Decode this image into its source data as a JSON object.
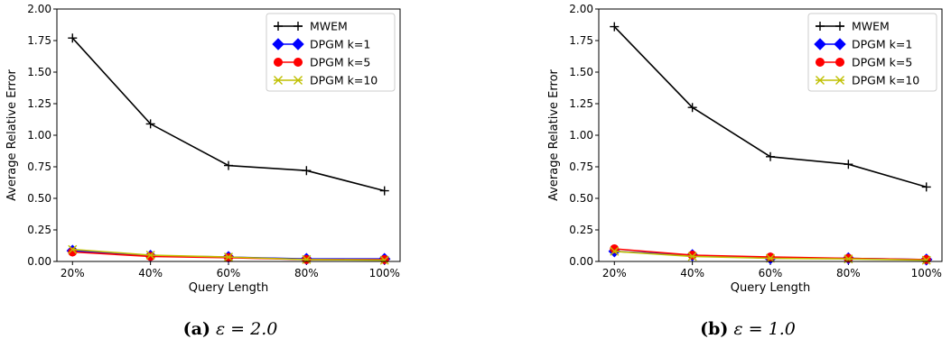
{
  "chart_data": [
    {
      "type": "line",
      "caption_label": "(a)",
      "caption_text": "ε = 2.0",
      "xlabel": "Query Length",
      "ylabel": "Average Relative Error",
      "categories": [
        "20%",
        "40%",
        "60%",
        "80%",
        "100%"
      ],
      "ylim": [
        0,
        2.0
      ],
      "yticks": [
        "0.00",
        "0.25",
        "0.50",
        "0.75",
        "1.00",
        "1.25",
        "1.50",
        "1.75",
        "2.00"
      ],
      "grid": false,
      "legend_position": "top-right",
      "series": [
        {
          "name": "MWEM",
          "color": "#000000",
          "marker": "plus",
          "values": [
            1.77,
            1.09,
            0.76,
            0.72,
            0.56
          ]
        },
        {
          "name": "DPGM k=1",
          "color": "#0000ff",
          "marker": "diamond",
          "values": [
            0.085,
            0.045,
            0.035,
            0.02,
            0.02
          ]
        },
        {
          "name": "DPGM k=5",
          "color": "#ff0000",
          "marker": "circle",
          "values": [
            0.075,
            0.04,
            0.03,
            0.015,
            0.015
          ]
        },
        {
          "name": "DPGM k=10",
          "color": "#bfbf00",
          "marker": "x",
          "values": [
            0.095,
            0.05,
            0.035,
            0.015,
            0.01
          ]
        }
      ]
    },
    {
      "type": "line",
      "caption_label": "(b)",
      "caption_text": "ε = 1.0",
      "xlabel": "Query Length",
      "ylabel": "Average Relative Error",
      "categories": [
        "20%",
        "40%",
        "60%",
        "80%",
        "100%"
      ],
      "ylim": [
        0,
        2.0
      ],
      "yticks": [
        "0.00",
        "0.25",
        "0.50",
        "0.75",
        "1.00",
        "1.25",
        "1.50",
        "1.75",
        "2.00"
      ],
      "grid": false,
      "legend_position": "top-right",
      "series": [
        {
          "name": "MWEM",
          "color": "#000000",
          "marker": "plus",
          "values": [
            1.86,
            1.22,
            0.83,
            0.77,
            0.59
          ]
        },
        {
          "name": "DPGM k=1",
          "color": "#0000ff",
          "marker": "diamond",
          "values": [
            0.08,
            0.05,
            0.025,
            0.025,
            0.015
          ]
        },
        {
          "name": "DPGM k=5",
          "color": "#ff0000",
          "marker": "circle",
          "values": [
            0.1,
            0.05,
            0.035,
            0.025,
            0.015
          ]
        },
        {
          "name": "DPGM k=10",
          "color": "#bfbf00",
          "marker": "x",
          "values": [
            0.08,
            0.04,
            0.025,
            0.02,
            0.01
          ]
        }
      ]
    }
  ]
}
